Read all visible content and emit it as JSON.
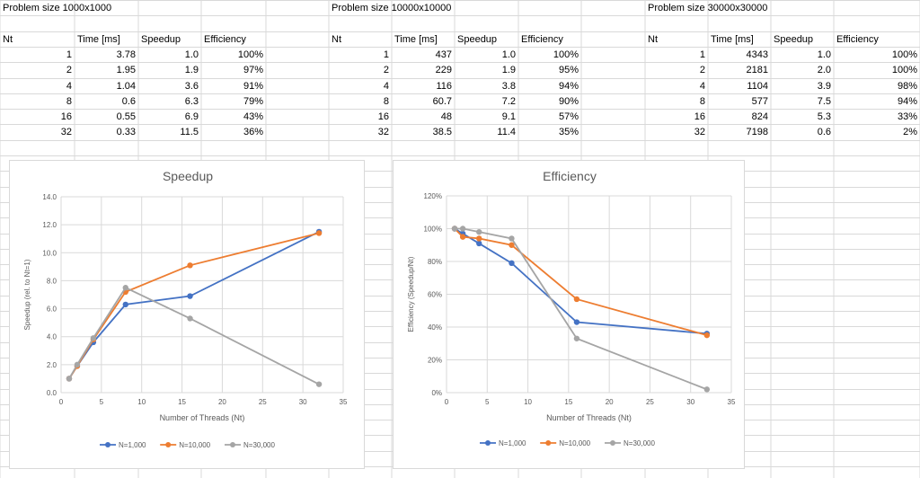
{
  "tables": [
    {
      "title": "Problem size 1000x1000",
      "headers": [
        "Nt",
        "Time [ms]",
        "Speedup",
        "Efficiency"
      ],
      "rows": [
        [
          "1",
          "3.78",
          "1.0",
          "100%"
        ],
        [
          "2",
          "1.95",
          "1.9",
          "97%"
        ],
        [
          "4",
          "1.04",
          "3.6",
          "91%"
        ],
        [
          "8",
          "0.6",
          "6.3",
          "79%"
        ],
        [
          "16",
          "0.55",
          "6.9",
          "43%"
        ],
        [
          "32",
          "0.33",
          "11.5",
          "36%"
        ]
      ]
    },
    {
      "title": "Problem size 10000x10000",
      "headers": [
        "Nt",
        "Time [ms]",
        "Speedup",
        "Efficiency"
      ],
      "rows": [
        [
          "1",
          "437",
          "1.0",
          "100%"
        ],
        [
          "2",
          "229",
          "1.9",
          "95%"
        ],
        [
          "4",
          "116",
          "3.8",
          "94%"
        ],
        [
          "8",
          "60.7",
          "7.2",
          "90%"
        ],
        [
          "16",
          "48",
          "9.1",
          "57%"
        ],
        [
          "32",
          "38.5",
          "11.4",
          "35%"
        ]
      ]
    },
    {
      "title": "Problem size 30000x30000",
      "headers": [
        "Nt",
        "Time [ms]",
        "Speedup",
        "Efficiency"
      ],
      "rows": [
        [
          "1",
          "4343",
          "1.0",
          "100%"
        ],
        [
          "2",
          "2181",
          "2.0",
          "100%"
        ],
        [
          "4",
          "1104",
          "3.9",
          "98%"
        ],
        [
          "8",
          "577",
          "7.5",
          "94%"
        ],
        [
          "16",
          "824",
          "5.3",
          "33%"
        ],
        [
          "32",
          "7198",
          "0.6",
          "2%"
        ]
      ]
    }
  ],
  "colors": {
    "grid_line": "#d9d9d9",
    "axis_text": "#595959",
    "title_text": "#595959",
    "plot_grid": "#d9d9d9"
  },
  "chart_data": [
    {
      "type": "line",
      "title": "Speedup",
      "xlabel": "Number of Threads (Nt)",
      "ylabel": "Speedup (rel. to Nt=1)",
      "xlim": [
        0,
        35
      ],
      "ylim": [
        0,
        14
      ],
      "xticks": [
        0,
        5,
        10,
        15,
        20,
        25,
        30,
        35
      ],
      "xtick_labels": [
        "0",
        "5",
        "10",
        "15",
        "20",
        "25",
        "30",
        "35"
      ],
      "yticks": [
        0,
        2,
        4,
        6,
        8,
        10,
        12,
        14
      ],
      "ytick_labels": [
        "0.0",
        "2.0",
        "4.0",
        "6.0",
        "8.0",
        "10.0",
        "12.0",
        "14.0"
      ],
      "grid": true,
      "legend_position": "bottom",
      "x": [
        1,
        2,
        4,
        8,
        16,
        32
      ],
      "series": [
        {
          "name": "N=1,000",
          "color": "#4472c4",
          "values": [
            1.0,
            1.9,
            3.6,
            6.3,
            6.9,
            11.5
          ]
        },
        {
          "name": "N=10,000",
          "color": "#ed7d31",
          "values": [
            1.0,
            1.9,
            3.8,
            7.2,
            9.1,
            11.4
          ]
        },
        {
          "name": "N=30,000",
          "color": "#a5a5a5",
          "values": [
            1.0,
            2.0,
            3.9,
            7.5,
            5.3,
            0.6
          ]
        }
      ]
    },
    {
      "type": "line",
      "title": "Efficiency",
      "xlabel": "Number of Threads (Nt)",
      "ylabel": "Efficiency (Speedup/Nt)",
      "xlim": [
        0,
        35
      ],
      "ylim": [
        0,
        120
      ],
      "xticks": [
        0,
        5,
        10,
        15,
        20,
        25,
        30,
        35
      ],
      "xtick_labels": [
        "0",
        "5",
        "10",
        "15",
        "20",
        "25",
        "30",
        "35"
      ],
      "yticks": [
        0,
        20,
        40,
        60,
        80,
        100,
        120
      ],
      "ytick_labels": [
        "0%",
        "20%",
        "40%",
        "60%",
        "80%",
        "100%",
        "120%"
      ],
      "grid": true,
      "legend_position": "bottom",
      "x": [
        1,
        2,
        4,
        8,
        16,
        32
      ],
      "series": [
        {
          "name": "N=1,000",
          "color": "#4472c4",
          "values": [
            100,
            97,
            91,
            79,
            43,
            36
          ]
        },
        {
          "name": "N=10,000",
          "color": "#ed7d31",
          "values": [
            100,
            95,
            94,
            90,
            57,
            35
          ]
        },
        {
          "name": "N=30,000",
          "color": "#a5a5a5",
          "values": [
            100,
            100,
            98,
            94,
            33,
            2
          ]
        }
      ]
    }
  ]
}
